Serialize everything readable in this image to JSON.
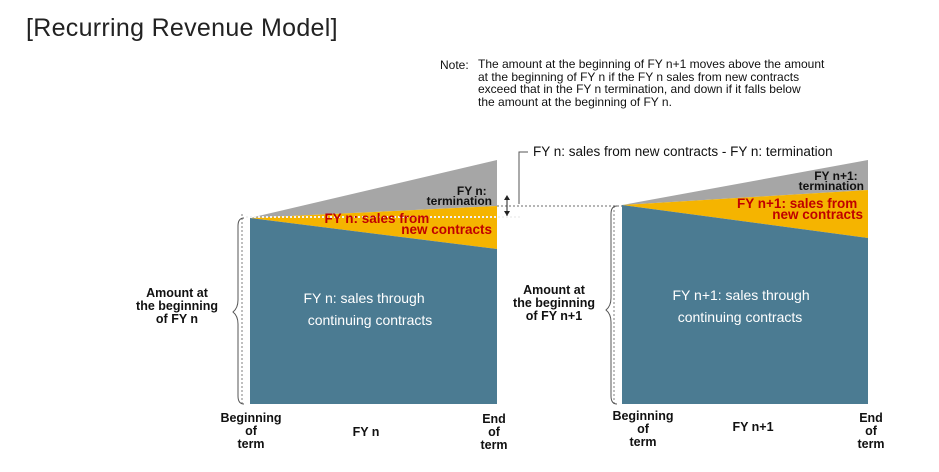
{
  "title": "[Recurring Revenue Model]",
  "note": {
    "label": "Note:",
    "lines": [
      "The amount at the beginning of FY n+1 moves above the amount",
      "at the beginning of FY n if the FY n sales from new contracts",
      "exceed that in the FY n termination, and down if it falls below",
      "the amount at the beginning of FY n."
    ]
  },
  "difference_label": "FY n: sales from new contracts - FY n: termination",
  "colors": {
    "continuing": "#4b7b92",
    "new": "#f5b400",
    "termination": "#a6a6a6",
    "red_text": "#c00000"
  },
  "fy_n": {
    "termination": [
      "FY n:",
      "termination"
    ],
    "new_contracts": [
      "FY n: sales from",
      "new contracts"
    ],
    "continuing": [
      "FY n: sales through",
      "continuing contracts"
    ],
    "amount_at_beginning": [
      "Amount at",
      "the beginning",
      "of FY n"
    ],
    "beginning_of_term": [
      "Beginning",
      "of",
      "term"
    ],
    "period": "FY n",
    "end_of_term": [
      "End",
      "of",
      "term"
    ]
  },
  "fy_n1": {
    "termination": [
      "FY n+1:",
      "termination"
    ],
    "new_contracts": [
      "FY n+1: sales from",
      "new contracts"
    ],
    "continuing": [
      "FY n+1: sales through",
      "continuing contracts"
    ],
    "amount_at_beginning": [
      "Amount at",
      "the beginning",
      "of FY n+1"
    ],
    "beginning_of_term": [
      "Beginning",
      "of",
      "term"
    ],
    "period": "FY n+1",
    "end_of_term": [
      "End",
      "of",
      "term"
    ]
  }
}
